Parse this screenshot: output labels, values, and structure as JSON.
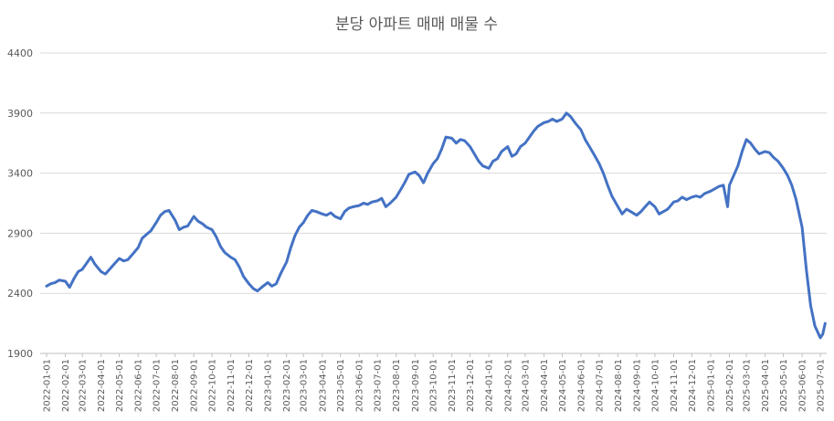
{
  "chart_data": {
    "type": "line",
    "title": "분당 아파트 매매 매물 수",
    "xlabel": "",
    "ylabel": "",
    "ylim": [
      1900,
      4400
    ],
    "yticks": [
      1900,
      2400,
      2900,
      3400,
      3900,
      4400
    ],
    "grid": true,
    "legend": "none",
    "line_color": "#4472C4",
    "x_ticks": [
      "2022-01-01",
      "2022-02-01",
      "2022-03-01",
      "2022-04-01",
      "2022-05-01",
      "2022-06-01",
      "2022-07-01",
      "2022-08-01",
      "2022-09-01",
      "2022-10-01",
      "2022-11-01",
      "2022-12-01",
      "2023-01-01",
      "2023-02-01",
      "2023-03-01",
      "2023-04-01",
      "2023-05-01",
      "2023-06-01",
      "2023-07-01",
      "2023-08-01",
      "2023-09-01",
      "2023-10-01",
      "2023-11-01",
      "2023-12-01",
      "2024-01-01",
      "2024-02-01",
      "2024-03-01",
      "2024-04-01",
      "2024-05-01",
      "2024-06-01",
      "2024-07-01",
      "2024-08-01",
      "2024-09-01",
      "2024-10-01",
      "2024-11-01",
      "2024-12-01",
      "2025-01-01",
      "2025-02-01",
      "2025-03-01",
      "2025-04-01",
      "2025-05-01",
      "2025-06-01",
      "2025-07-01"
    ],
    "series": [
      {
        "points": [
          [
            "2022-01-01",
            2460
          ],
          [
            "2022-01-08",
            2480
          ],
          [
            "2022-01-15",
            2490
          ],
          [
            "2022-01-22",
            2510
          ],
          [
            "2022-02-01",
            2500
          ],
          [
            "2022-02-08",
            2450
          ],
          [
            "2022-02-15",
            2520
          ],
          [
            "2022-02-22",
            2580
          ],
          [
            "2022-03-01",
            2600
          ],
          [
            "2022-03-08",
            2650
          ],
          [
            "2022-03-15",
            2700
          ],
          [
            "2022-03-22",
            2640
          ],
          [
            "2022-04-01",
            2580
          ],
          [
            "2022-04-08",
            2560
          ],
          [
            "2022-04-15",
            2600
          ],
          [
            "2022-04-22",
            2640
          ],
          [
            "2022-05-01",
            2690
          ],
          [
            "2022-05-08",
            2670
          ],
          [
            "2022-05-15",
            2680
          ],
          [
            "2022-05-22",
            2720
          ],
          [
            "2022-06-01",
            2780
          ],
          [
            "2022-06-08",
            2860
          ],
          [
            "2022-06-15",
            2890
          ],
          [
            "2022-06-22",
            2920
          ],
          [
            "2022-07-01",
            2990
          ],
          [
            "2022-07-08",
            3050
          ],
          [
            "2022-07-15",
            3080
          ],
          [
            "2022-07-22",
            3090
          ],
          [
            "2022-08-01",
            3010
          ],
          [
            "2022-08-08",
            2930
          ],
          [
            "2022-08-15",
            2950
          ],
          [
            "2022-08-22",
            2960
          ],
          [
            "2022-09-01",
            3040
          ],
          [
            "2022-09-08",
            3000
          ],
          [
            "2022-09-15",
            2980
          ],
          [
            "2022-09-22",
            2950
          ],
          [
            "2022-10-01",
            2930
          ],
          [
            "2022-10-08",
            2870
          ],
          [
            "2022-10-15",
            2790
          ],
          [
            "2022-10-22",
            2740
          ],
          [
            "2022-11-01",
            2700
          ],
          [
            "2022-11-08",
            2680
          ],
          [
            "2022-11-15",
            2620
          ],
          [
            "2022-11-22",
            2540
          ],
          [
            "2022-12-01",
            2480
          ],
          [
            "2022-12-08",
            2440
          ],
          [
            "2022-12-15",
            2420
          ],
          [
            "2022-12-22",
            2450
          ],
          [
            "2023-01-01",
            2490
          ],
          [
            "2023-01-08",
            2460
          ],
          [
            "2023-01-15",
            2480
          ],
          [
            "2023-01-22",
            2560
          ],
          [
            "2023-02-01",
            2660
          ],
          [
            "2023-02-08",
            2780
          ],
          [
            "2023-02-15",
            2880
          ],
          [
            "2023-02-22",
            2950
          ],
          [
            "2023-03-01",
            2990
          ],
          [
            "2023-03-08",
            3050
          ],
          [
            "2023-03-15",
            3090
          ],
          [
            "2023-03-22",
            3080
          ],
          [
            "2023-04-01",
            3060
          ],
          [
            "2023-04-08",
            3050
          ],
          [
            "2023-04-15",
            3070
          ],
          [
            "2023-04-22",
            3040
          ],
          [
            "2023-05-01",
            3020
          ],
          [
            "2023-05-08",
            3080
          ],
          [
            "2023-05-15",
            3110
          ],
          [
            "2023-05-22",
            3120
          ],
          [
            "2023-06-01",
            3130
          ],
          [
            "2023-06-08",
            3150
          ],
          [
            "2023-06-15",
            3140
          ],
          [
            "2023-06-22",
            3160
          ],
          [
            "2023-07-01",
            3170
          ],
          [
            "2023-07-08",
            3190
          ],
          [
            "2023-07-15",
            3120
          ],
          [
            "2023-07-22",
            3150
          ],
          [
            "2023-08-01",
            3200
          ],
          [
            "2023-08-08",
            3260
          ],
          [
            "2023-08-15",
            3320
          ],
          [
            "2023-08-22",
            3390
          ],
          [
            "2023-09-01",
            3410
          ],
          [
            "2023-09-08",
            3380
          ],
          [
            "2023-09-15",
            3320
          ],
          [
            "2023-09-22",
            3400
          ],
          [
            "2023-10-01",
            3480
          ],
          [
            "2023-10-08",
            3520
          ],
          [
            "2023-10-15",
            3600
          ],
          [
            "2023-10-22",
            3700
          ],
          [
            "2023-11-01",
            3690
          ],
          [
            "2023-11-08",
            3650
          ],
          [
            "2023-11-15",
            3680
          ],
          [
            "2023-11-22",
            3670
          ],
          [
            "2023-12-01",
            3620
          ],
          [
            "2023-12-08",
            3560
          ],
          [
            "2023-12-15",
            3500
          ],
          [
            "2023-12-22",
            3460
          ],
          [
            "2024-01-01",
            3440
          ],
          [
            "2024-01-08",
            3500
          ],
          [
            "2024-01-15",
            3520
          ],
          [
            "2024-01-22",
            3580
          ],
          [
            "2024-02-01",
            3620
          ],
          [
            "2024-02-08",
            3540
          ],
          [
            "2024-02-15",
            3560
          ],
          [
            "2024-02-22",
            3620
          ],
          [
            "2024-03-01",
            3650
          ],
          [
            "2024-03-08",
            3700
          ],
          [
            "2024-03-15",
            3750
          ],
          [
            "2024-03-22",
            3790
          ],
          [
            "2024-04-01",
            3820
          ],
          [
            "2024-04-08",
            3830
          ],
          [
            "2024-04-15",
            3850
          ],
          [
            "2024-04-22",
            3830
          ],
          [
            "2024-05-01",
            3850
          ],
          [
            "2024-05-08",
            3900
          ],
          [
            "2024-05-15",
            3870
          ],
          [
            "2024-05-22",
            3820
          ],
          [
            "2024-06-01",
            3760
          ],
          [
            "2024-06-08",
            3680
          ],
          [
            "2024-06-15",
            3620
          ],
          [
            "2024-06-22",
            3560
          ],
          [
            "2024-07-01",
            3480
          ],
          [
            "2024-07-08",
            3400
          ],
          [
            "2024-07-15",
            3300
          ],
          [
            "2024-07-22",
            3210
          ],
          [
            "2024-08-01",
            3120
          ],
          [
            "2024-08-08",
            3060
          ],
          [
            "2024-08-15",
            3100
          ],
          [
            "2024-08-22",
            3080
          ],
          [
            "2024-09-01",
            3050
          ],
          [
            "2024-09-08",
            3080
          ],
          [
            "2024-09-15",
            3120
          ],
          [
            "2024-09-22",
            3160
          ],
          [
            "2024-10-01",
            3120
          ],
          [
            "2024-10-08",
            3060
          ],
          [
            "2024-10-15",
            3080
          ],
          [
            "2024-10-22",
            3100
          ],
          [
            "2024-11-01",
            3160
          ],
          [
            "2024-11-08",
            3170
          ],
          [
            "2024-11-15",
            3200
          ],
          [
            "2024-11-22",
            3180
          ],
          [
            "2024-12-01",
            3200
          ],
          [
            "2024-12-08",
            3210
          ],
          [
            "2024-12-15",
            3200
          ],
          [
            "2024-12-22",
            3230
          ],
          [
            "2025-01-01",
            3250
          ],
          [
            "2025-01-08",
            3270
          ],
          [
            "2025-01-15",
            3290
          ],
          [
            "2025-01-22",
            3300
          ],
          [
            "2025-01-29",
            3120
          ],
          [
            "2025-02-01",
            3300
          ],
          [
            "2025-02-08",
            3380
          ],
          [
            "2025-02-15",
            3460
          ],
          [
            "2025-02-22",
            3580
          ],
          [
            "2025-03-01",
            3680
          ],
          [
            "2025-03-08",
            3650
          ],
          [
            "2025-03-15",
            3600
          ],
          [
            "2025-03-22",
            3560
          ],
          [
            "2025-04-01",
            3580
          ],
          [
            "2025-04-08",
            3570
          ],
          [
            "2025-04-15",
            3530
          ],
          [
            "2025-04-22",
            3500
          ],
          [
            "2025-05-01",
            3440
          ],
          [
            "2025-05-08",
            3380
          ],
          [
            "2025-05-15",
            3300
          ],
          [
            "2025-05-22",
            3180
          ],
          [
            "2025-06-01",
            2950
          ],
          [
            "2025-06-08",
            2600
          ],
          [
            "2025-06-15",
            2300
          ],
          [
            "2025-06-22",
            2130
          ],
          [
            "2025-07-01",
            2030
          ],
          [
            "2025-07-05",
            2060
          ],
          [
            "2025-07-09",
            2150
          ]
        ]
      }
    ]
  }
}
